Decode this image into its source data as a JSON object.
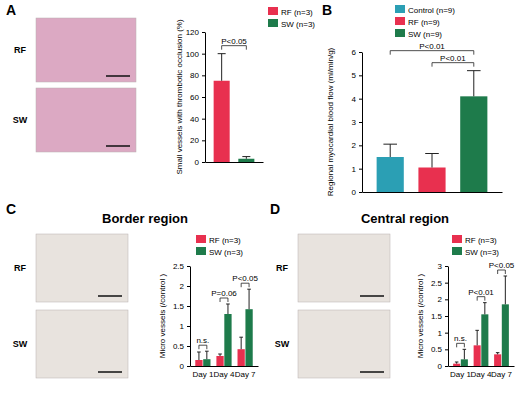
{
  "chart_data": [
    {
      "type": "bar",
      "panel": "A",
      "image_labels": [
        "RF",
        "SW"
      ],
      "ylabel": "Small vessels with thrombotic occlusion (%)",
      "categories": [
        null,
        null
      ],
      "series": [
        {
          "name": "RF (n=3)",
          "color": "#e8304f",
          "values": [
            75,
            null
          ],
          "errors": [
            25,
            null
          ]
        },
        {
          "name": "SW (n=3)",
          "color": "#1e7b4b",
          "values": [
            null,
            3
          ],
          "errors": [
            null,
            2
          ]
        }
      ],
      "ylim": [
        0,
        120
      ],
      "yticks": [
        0,
        20,
        40,
        60,
        80,
        100,
        120
      ],
      "annotations": [
        "P<0.05"
      ],
      "legend": "upper right"
    },
    {
      "type": "bar",
      "panel": "B",
      "ylabel": "Regional myocardial blood flow (ml/min/g)",
      "categories": [
        null,
        null,
        null
      ],
      "series": [
        {
          "name": "Control (n=9)",
          "color": "#2b9fb4",
          "values": [
            1.5,
            null,
            null
          ],
          "errors": [
            0.55,
            null,
            null
          ]
        },
        {
          "name": "RF (n=9)",
          "color": "#e8304f",
          "values": [
            null,
            1.05,
            null
          ],
          "errors": [
            null,
            0.6,
            null
          ]
        },
        {
          "name": "SW (n=9)",
          "color": "#1e7b4b",
          "values": [
            null,
            null,
            4.1
          ],
          "errors": [
            null,
            null,
            1.1
          ]
        }
      ],
      "ylim": [
        0,
        6
      ],
      "yticks": [
        0,
        1,
        2,
        3,
        4,
        5,
        6
      ],
      "annotations": [
        "P<0.01",
        "P<0.01"
      ],
      "legend": "upper right"
    },
    {
      "type": "bar",
      "panel": "C",
      "title": "Border region",
      "image_labels": [
        "RF",
        "SW"
      ],
      "ylabel": "Micro vessels (/control )",
      "categories": [
        "Day 1",
        "Day 4",
        "Day 7"
      ],
      "series": [
        {
          "name": "RF (n=3)",
          "color": "#e8304f",
          "values": [
            0.15,
            0.25,
            0.42
          ],
          "errors": [
            0.2,
            0.05,
            0.3
          ]
        },
        {
          "name": "SW (n=3)",
          "color": "#1e7b4b",
          "values": [
            0.17,
            1.3,
            1.42
          ],
          "errors": [
            0.2,
            0.25,
            0.5
          ]
        }
      ],
      "ylim": [
        0,
        2.5
      ],
      "yticks": [
        0,
        0.5,
        1,
        1.5,
        2,
        2.5
      ],
      "annotations": [
        "n.s.",
        "P=0.06",
        "P<0.05"
      ],
      "legend": "upper left"
    },
    {
      "type": "bar",
      "panel": "D",
      "title": "Central region",
      "image_labels": [
        "RF",
        "SW"
      ],
      "ylabel": "Micro vessels (/control )",
      "categories": [
        "Day 1",
        "Day 4",
        "Day 7"
      ],
      "series": [
        {
          "name": "RF (n=3)",
          "color": "#e8304f",
          "values": [
            0.07,
            0.62,
            0.35
          ],
          "errors": [
            0.05,
            0.45,
            0.05
          ]
        },
        {
          "name": "SW (n=3)",
          "color": "#1e7b4b",
          "values": [
            0.2,
            1.55,
            1.85
          ],
          "errors": [
            0.3,
            0.35,
            0.85
          ]
        }
      ],
      "ylim": [
        0,
        3
      ],
      "yticks": [
        0,
        0.5,
        1,
        1.5,
        2,
        2.5,
        3
      ],
      "annotations": [
        "n.s.",
        "P<0.01",
        "P<0.05"
      ],
      "legend": "upper left"
    }
  ]
}
